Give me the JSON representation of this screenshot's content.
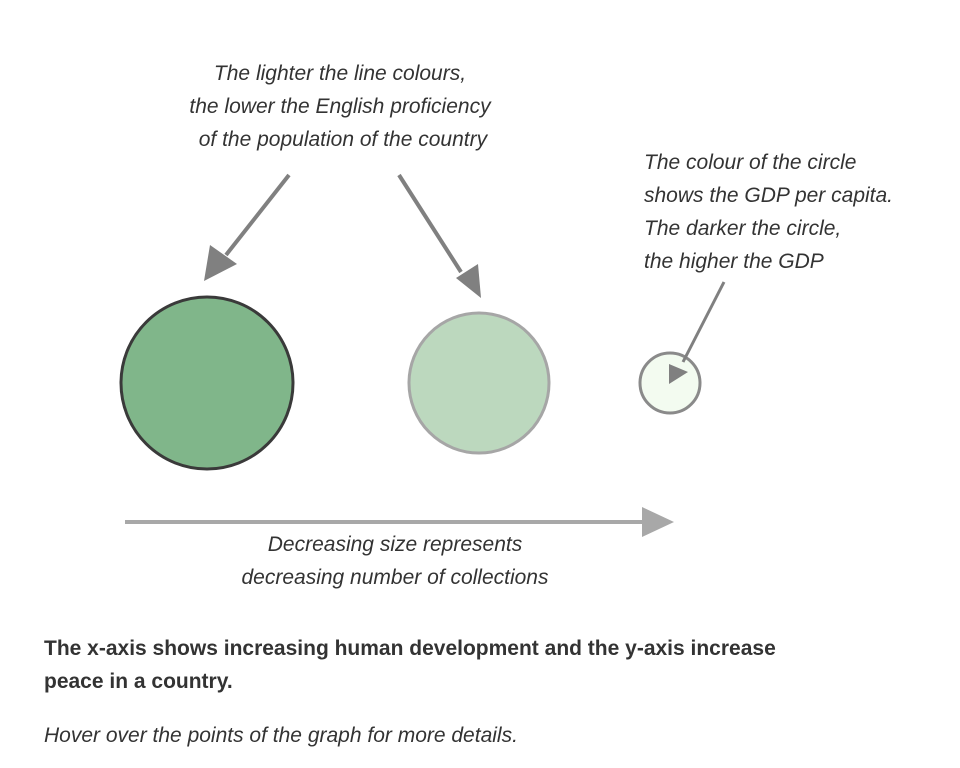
{
  "annotations": {
    "line_colour": [
      "The lighter the line colours,",
      "the lower the English proficiency",
      " of the population of the country"
    ],
    "gdp_colour": [
      "The colour of the circle",
      "shows the GDP per capita.",
      "The darker the circle,",
      "the higher the GDP"
    ],
    "size": [
      "Decreasing size represents",
      "decreasing number of collections"
    ]
  },
  "summary": "The x-axis shows increasing human development and the y-axis increase peace in a country.",
  "hover_hint": "Hover over the points of the graph for more details.",
  "colors": {
    "arrow": "#808080",
    "size_arrow": "#a8a8a8",
    "circle_large_fill": "#80b68a",
    "circle_large_stroke": "#3a3a3a",
    "circle_medium_fill": "#bcd8be",
    "circle_medium_stroke": "#a6a6a6",
    "circle_small_fill": "#f3fbf0",
    "circle_small_stroke": "#8a8a8a"
  }
}
